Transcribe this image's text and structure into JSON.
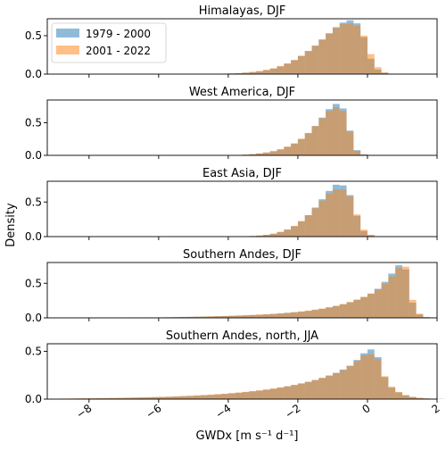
{
  "colors": {
    "series_a": "#1f77b4",
    "series_b": "#ff7f0e"
  },
  "ylabel": "Density",
  "xlabel": "GWDx [m s⁻¹ d⁻¹]",
  "chart_data": {
    "type": "bar",
    "shared_x_axis": {
      "xlim": [
        -9.2,
        2.0
      ],
      "ticks": [
        -8,
        -6,
        -4,
        -2,
        0,
        2
      ],
      "tick_labels": [
        "−8",
        "−6",
        "−4",
        "−2",
        "0",
        "2"
      ],
      "bin_width": 0.2
    },
    "legend": {
      "placement": "top-left of first panel",
      "entries": [
        "1979 - 2000",
        "2001 - 2022"
      ]
    },
    "panels": [
      {
        "title": "Himalayas, DJF",
        "ylim": [
          0,
          0.72
        ],
        "yticks": [
          0,
          0.5
        ],
        "ytick_labels": [
          "0.0",
          "0.5"
        ],
        "bin_start": -4.2,
        "series": [
          {
            "name": "1979 - 2000",
            "values": [
              0.005,
              0.008,
              0.012,
              0.018,
              0.026,
              0.037,
              0.052,
              0.072,
              0.1,
              0.135,
              0.18,
              0.235,
              0.3,
              0.37,
              0.45,
              0.53,
              0.61,
              0.67,
              0.7,
              0.66,
              0.48,
              0.2,
              0.06,
              0.015,
              0.004
            ]
          },
          {
            "name": "2001 - 2022",
            "values": [
              0.005,
              0.009,
              0.013,
              0.02,
              0.028,
              0.039,
              0.055,
              0.075,
              0.105,
              0.14,
              0.185,
              0.24,
              0.3,
              0.37,
              0.45,
              0.53,
              0.6,
              0.65,
              0.66,
              0.63,
              0.5,
              0.26,
              0.09,
              0.025,
              0.006
            ]
          }
        ]
      },
      {
        "title": "West America, DJF",
        "ylim": [
          0,
          0.85
        ],
        "yticks": [
          0,
          0.5
        ],
        "ytick_labels": [
          "0.0",
          "0.5"
        ],
        "bin_start": -3.6,
        "series": [
          {
            "name": "1979 - 2000",
            "values": [
              0.01,
              0.018,
              0.028,
              0.042,
              0.062,
              0.09,
              0.13,
              0.18,
              0.25,
              0.34,
              0.45,
              0.58,
              0.71,
              0.79,
              0.72,
              0.38,
              0.08,
              0.015,
              0.004
            ]
          },
          {
            "name": "2001 - 2022",
            "values": [
              0.011,
              0.019,
              0.03,
              0.045,
              0.066,
              0.095,
              0.135,
              0.185,
              0.255,
              0.345,
              0.45,
              0.57,
              0.68,
              0.74,
              0.68,
              0.36,
              0.07,
              0.012,
              0.003
            ]
          }
        ]
      },
      {
        "title": "East Asia, DJF",
        "ylim": [
          0,
          0.8
        ],
        "yticks": [
          0,
          0.5
        ],
        "ytick_labels": [
          "0.0",
          "0.5"
        ],
        "bin_start": -3.4,
        "series": [
          {
            "name": "1979 - 2000",
            "values": [
              0.008,
              0.014,
              0.024,
              0.04,
              0.065,
              0.1,
              0.15,
              0.22,
              0.31,
              0.42,
              0.54,
              0.66,
              0.75,
              0.74,
              0.6,
              0.3,
              0.08,
              0.02,
              0.005
            ]
          },
          {
            "name": "2001 - 2022",
            "values": [
              0.009,
              0.016,
              0.027,
              0.044,
              0.07,
              0.105,
              0.155,
              0.225,
              0.31,
              0.41,
              0.52,
              0.62,
              0.68,
              0.68,
              0.58,
              0.32,
              0.1,
              0.025,
              0.006
            ]
          }
        ]
      },
      {
        "title": "Southern Andes, DJF",
        "ylim": [
          0,
          0.8
        ],
        "yticks": [
          0,
          0.5
        ],
        "ytick_labels": [
          "0.0",
          "0.5"
        ],
        "bin_start": -7.0,
        "series": [
          {
            "name": "1979 - 2000",
            "values": [
              0.002,
              0.003,
              0.004,
              0.005,
              0.006,
              0.007,
              0.008,
              0.01,
              0.012,
              0.014,
              0.016,
              0.018,
              0.02,
              0.023,
              0.026,
              0.029,
              0.032,
              0.036,
              0.04,
              0.045,
              0.05,
              0.056,
              0.063,
              0.071,
              0.08,
              0.09,
              0.1,
              0.115,
              0.13,
              0.15,
              0.17,
              0.195,
              0.225,
              0.26,
              0.3,
              0.35,
              0.42,
              0.52,
              0.64,
              0.76,
              0.7,
              0.22,
              0.05,
              0.01
            ]
          },
          {
            "name": "2001 - 2022",
            "values": [
              0.002,
              0.003,
              0.004,
              0.005,
              0.006,
              0.008,
              0.009,
              0.011,
              0.013,
              0.015,
              0.017,
              0.02,
              0.022,
              0.025,
              0.028,
              0.031,
              0.035,
              0.039,
              0.043,
              0.048,
              0.053,
              0.059,
              0.066,
              0.074,
              0.083,
              0.093,
              0.105,
              0.12,
              0.135,
              0.155,
              0.175,
              0.2,
              0.23,
              0.265,
              0.305,
              0.35,
              0.41,
              0.49,
              0.6,
              0.72,
              0.74,
              0.26,
              0.06,
              0.012
            ]
          }
        ]
      },
      {
        "title": "Southern Andes, north, JJA",
        "ylim": [
          0,
          0.58
        ],
        "yticks": [
          0,
          0.5
        ],
        "ytick_labels": [
          "0.0",
          "0.5"
        ],
        "bin_start": -8.8,
        "series": [
          {
            "name": "1979 - 2000",
            "values": [
              0.004,
              0.005,
              0.006,
              0.007,
              0.008,
              0.009,
              0.01,
              0.011,
              0.012,
              0.013,
              0.015,
              0.016,
              0.018,
              0.02,
              0.022,
              0.024,
              0.027,
              0.03,
              0.033,
              0.036,
              0.04,
              0.044,
              0.049,
              0.054,
              0.06,
              0.066,
              0.073,
              0.081,
              0.089,
              0.098,
              0.108,
              0.12,
              0.133,
              0.147,
              0.163,
              0.18,
              0.2,
              0.222,
              0.247,
              0.275,
              0.31,
              0.35,
              0.41,
              0.48,
              0.52,
              0.44,
              0.23,
              0.12,
              0.07,
              0.04,
              0.022,
              0.012,
              0.007,
              0.004,
              0.002
            ]
          },
          {
            "name": "2001 - 2022",
            "values": [
              0.005,
              0.006,
              0.007,
              0.008,
              0.009,
              0.01,
              0.011,
              0.012,
              0.013,
              0.015,
              0.016,
              0.018,
              0.02,
              0.022,
              0.024,
              0.026,
              0.029,
              0.032,
              0.035,
              0.039,
              0.043,
              0.047,
              0.052,
              0.057,
              0.063,
              0.069,
              0.076,
              0.084,
              0.092,
              0.101,
              0.111,
              0.122,
              0.135,
              0.149,
              0.165,
              0.182,
              0.201,
              0.222,
              0.246,
              0.273,
              0.305,
              0.345,
              0.4,
              0.46,
              0.47,
              0.42,
              0.24,
              0.13,
              0.075,
              0.042,
              0.024,
              0.013,
              0.007,
              0.004,
              0.002
            ]
          }
        ]
      }
    ]
  }
}
